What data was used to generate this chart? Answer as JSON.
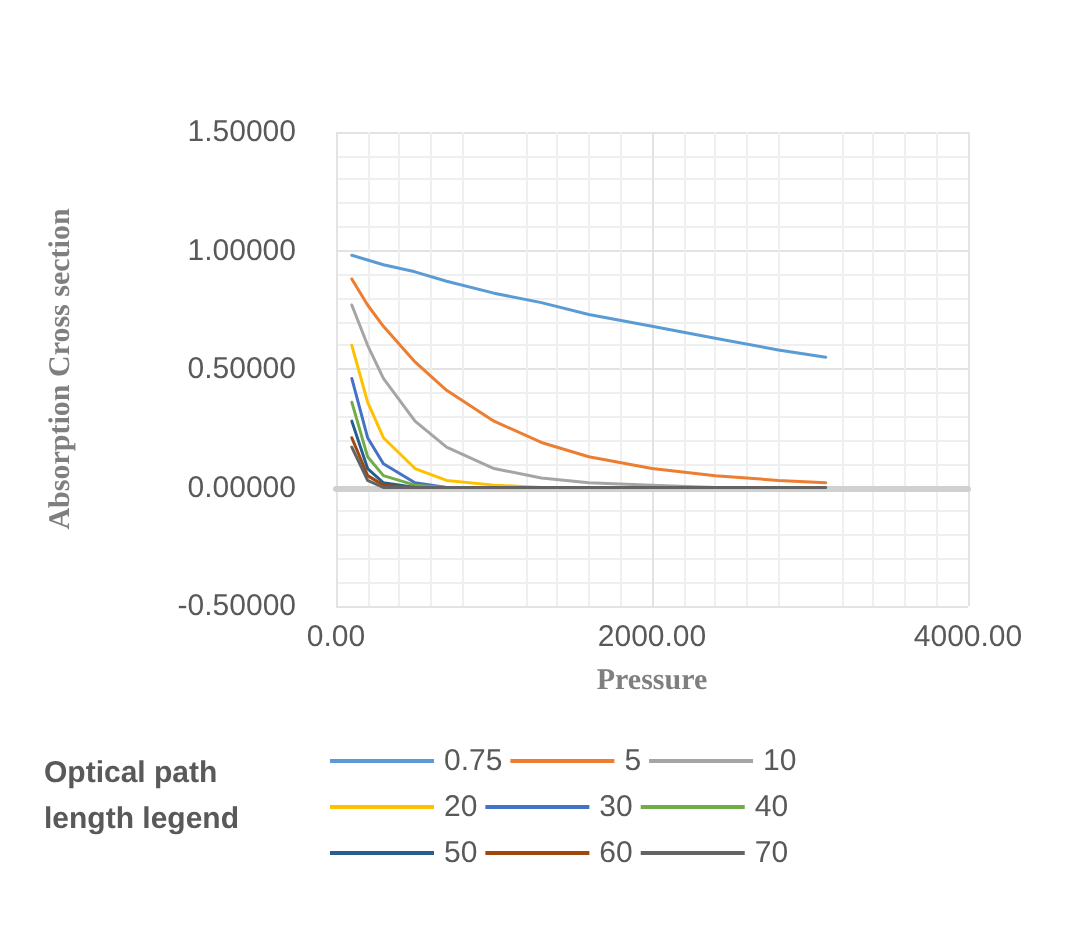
{
  "chart_data": {
    "type": "line",
    "xlabel": "Pressure",
    "ylabel": "Absorption Cross section",
    "legend_title": "Optical path length legend",
    "x": [
      100,
      200,
      300,
      500,
      700,
      1000,
      1300,
      1600,
      2000,
      2400,
      2800,
      3100
    ],
    "xlim": [
      0,
      4000
    ],
    "xticks": [
      {
        "value": 0,
        "label": "0.00"
      },
      {
        "value": 2000,
        "label": "2000.00"
      },
      {
        "value": 4000,
        "label": "4000.00"
      }
    ],
    "ylim": [
      -0.5,
      1.5
    ],
    "yticks": [
      {
        "value": -0.5,
        "label": "-0.50000"
      },
      {
        "value": 0,
        "label": "0.00000"
      },
      {
        "value": 0.5,
        "label": "0.50000"
      },
      {
        "value": 1,
        "label": "1.00000"
      },
      {
        "value": 1.5,
        "label": "1.50000"
      }
    ],
    "grid": true,
    "legend": "bottom",
    "marker": "none",
    "line_style": "solid",
    "series": [
      {
        "name": "0.75",
        "color": "#5b9bd5",
        "values": [
          0.98,
          0.96,
          0.94,
          0.91,
          0.87,
          0.82,
          0.78,
          0.73,
          0.68,
          0.63,
          0.58,
          0.55
        ]
      },
      {
        "name": "5",
        "color": "#ed7d31",
        "values": [
          0.88,
          0.77,
          0.68,
          0.53,
          0.41,
          0.28,
          0.19,
          0.13,
          0.08,
          0.05,
          0.03,
          0.02
        ]
      },
      {
        "name": "10",
        "color": "#a5a5a5",
        "values": [
          0.77,
          0.6,
          0.46,
          0.28,
          0.17,
          0.08,
          0.04,
          0.02,
          0.01,
          0,
          null,
          null
        ]
      },
      {
        "name": "20",
        "color": "#ffc000",
        "values": [
          0.6,
          0.36,
          0.21,
          0.08,
          0.03,
          0.01,
          0,
          null,
          null,
          null,
          null,
          null
        ]
      },
      {
        "name": "30",
        "color": "#4472c4",
        "values": [
          0.46,
          0.21,
          0.1,
          0.02,
          0,
          null,
          null,
          null,
          null,
          null,
          null,
          null
        ]
      },
      {
        "name": "40",
        "color": "#70ad47",
        "values": [
          0.36,
          0.13,
          0.05,
          0.01,
          0,
          null,
          null,
          null,
          null,
          null,
          null,
          null
        ]
      },
      {
        "name": "50",
        "color": "#255e91",
        "values": [
          0.28,
          0.08,
          0.02,
          0,
          null,
          null,
          null,
          null,
          null,
          null,
          null,
          null
        ]
      },
      {
        "name": "60",
        "color": "#9e480e",
        "values": [
          0.21,
          0.05,
          0.01,
          0,
          null,
          null,
          null,
          null,
          null,
          null,
          null,
          null
        ]
      },
      {
        "name": "70",
        "color": "#636363",
        "values": [
          0.17,
          0.03,
          0,
          0,
          0,
          0,
          0,
          0,
          0,
          0,
          0,
          0
        ]
      }
    ]
  }
}
